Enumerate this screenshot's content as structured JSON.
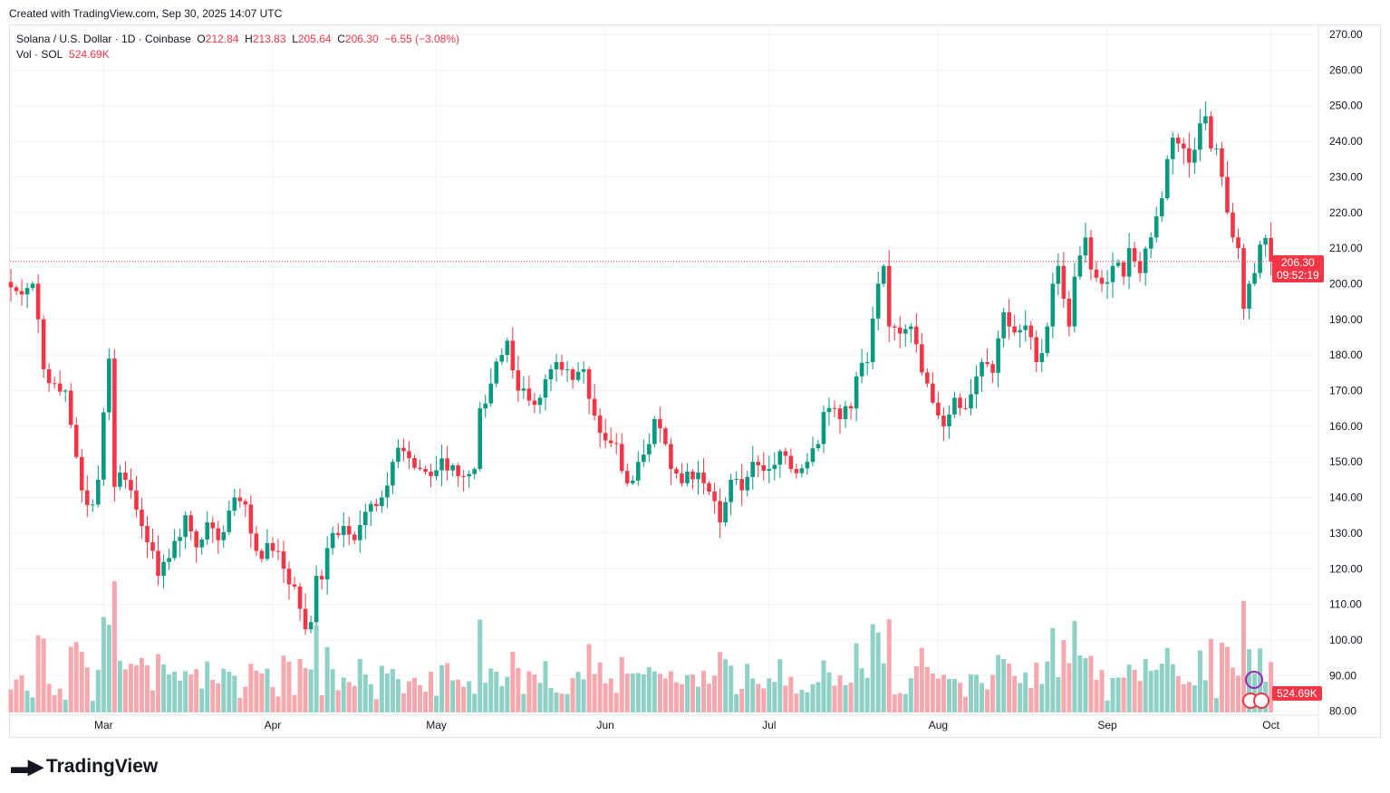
{
  "header": {
    "created": "Created with TradingView.com, Sep 30, 2025 14:07 UTC"
  },
  "legend": {
    "symbol": "Solana / U.S. Dollar · 1D · Coinbase",
    "o_label": "O",
    "o": "212.84",
    "h_label": "H",
    "h": "213.83",
    "l_label": "L",
    "l": "205.64",
    "c_label": "C",
    "c": "206.30",
    "change": "−6.55 (−3.08%)",
    "vol_label": "Vol · SOL",
    "vol": "524.69K"
  },
  "price_tag": {
    "price": "206.30",
    "countdown": "09:52:19"
  },
  "volume_tag": "524.69K",
  "logo": "TradingView",
  "chart_data": {
    "type": "candlestick",
    "title": "Solana / U.S. Dollar · 1D · Coinbase",
    "ylim": [
      80,
      270
    ],
    "yticks": [
      "270.00",
      "260.00",
      "250.00",
      "240.00",
      "230.00",
      "220.00",
      "210.00",
      "200.00",
      "190.00",
      "180.00",
      "170.00",
      "160.00",
      "150.00",
      "140.00",
      "130.00",
      "120.00",
      "110.00",
      "100.00",
      "90.00",
      "80.00"
    ],
    "xticks": [
      {
        "label": "Mar",
        "day": 17
      },
      {
        "label": "Apr",
        "day": 48
      },
      {
        "label": "May",
        "day": 78
      },
      {
        "label": "Jun",
        "day": 109
      },
      {
        "label": "Jul",
        "day": 139
      },
      {
        "label": "Aug",
        "day": 170
      },
      {
        "label": "Sep",
        "day": 201
      },
      {
        "label": "Oct",
        "day": 231
      }
    ],
    "start_date": "2025-02-12",
    "close_anchors": [
      [
        0,
        199
      ],
      [
        2,
        197
      ],
      [
        4,
        200
      ],
      [
        5,
        190
      ],
      [
        6,
        176
      ],
      [
        8,
        172
      ],
      [
        10,
        170
      ],
      [
        13,
        142
      ],
      [
        15,
        138
      ],
      [
        16,
        145
      ],
      [
        18,
        179
      ],
      [
        19,
        143
      ],
      [
        20,
        147
      ],
      [
        22,
        142
      ],
      [
        24,
        132
      ],
      [
        26,
        125
      ],
      [
        27,
        118
      ],
      [
        29,
        123
      ],
      [
        32,
        135
      ],
      [
        34,
        126
      ],
      [
        36,
        133
      ],
      [
        38,
        128
      ],
      [
        41,
        140
      ],
      [
        43,
        138
      ],
      [
        45,
        125
      ],
      [
        48,
        125
      ],
      [
        50,
        120
      ],
      [
        52,
        115
      ],
      [
        54,
        103
      ],
      [
        55,
        105
      ],
      [
        56,
        118
      ],
      [
        57,
        117
      ],
      [
        59,
        130
      ],
      [
        61,
        132
      ],
      [
        63,
        128
      ],
      [
        65,
        136
      ],
      [
        68,
        140
      ],
      [
        70,
        150
      ],
      [
        72,
        153
      ],
      [
        75,
        148
      ],
      [
        77,
        146
      ],
      [
        79,
        151
      ],
      [
        82,
        146
      ],
      [
        85,
        148
      ],
      [
        86,
        165
      ],
      [
        88,
        172
      ],
      [
        90,
        180
      ],
      [
        91,
        184
      ],
      [
        93,
        170
      ],
      [
        96,
        166
      ],
      [
        99,
        176
      ],
      [
        100,
        178
      ],
      [
        103,
        173
      ],
      [
        105,
        176
      ],
      [
        107,
        163
      ],
      [
        109,
        156
      ],
      [
        111,
        155
      ],
      [
        113,
        144
      ],
      [
        115,
        150
      ],
      [
        117,
        155
      ],
      [
        118,
        162
      ],
      [
        120,
        155
      ],
      [
        121,
        148
      ],
      [
        123,
        144
      ],
      [
        126,
        147
      ],
      [
        129,
        139
      ],
      [
        130,
        133
      ],
      [
        132,
        145
      ],
      [
        134,
        142
      ],
      [
        136,
        150
      ],
      [
        139,
        148
      ],
      [
        141,
        153
      ],
      [
        143,
        148
      ],
      [
        146,
        150
      ],
      [
        148,
        155
      ],
      [
        149,
        164
      ],
      [
        152,
        162
      ],
      [
        154,
        165
      ],
      [
        155,
        174
      ],
      [
        157,
        178
      ],
      [
        159,
        200
      ],
      [
        160,
        205
      ],
      [
        161,
        188
      ],
      [
        163,
        186
      ],
      [
        165,
        188
      ],
      [
        166,
        183
      ],
      [
        168,
        172
      ],
      [
        170,
        163
      ],
      [
        171,
        160
      ],
      [
        173,
        168
      ],
      [
        175,
        165
      ],
      [
        177,
        174
      ],
      [
        178,
        178
      ],
      [
        180,
        175
      ],
      [
        182,
        192
      ],
      [
        183,
        188
      ],
      [
        185,
        187
      ],
      [
        187,
        185
      ],
      [
        188,
        178
      ],
      [
        190,
        188
      ],
      [
        191,
        200
      ],
      [
        192,
        205
      ],
      [
        194,
        188
      ],
      [
        195,
        202
      ],
      [
        197,
        213
      ],
      [
        198,
        204
      ],
      [
        200,
        200
      ],
      [
        202,
        205
      ],
      [
        204,
        202
      ],
      [
        205,
        210
      ],
      [
        207,
        203
      ],
      [
        209,
        213
      ],
      [
        211,
        224
      ],
      [
        212,
        235
      ],
      [
        213,
        241
      ],
      [
        215,
        238
      ],
      [
        216,
        234
      ],
      [
        218,
        245
      ],
      [
        219,
        247
      ],
      [
        220,
        238
      ],
      [
        221,
        238
      ],
      [
        222,
        230
      ],
      [
        223,
        220
      ],
      [
        224,
        213
      ],
      [
        225,
        210
      ],
      [
        226,
        193
      ],
      [
        227,
        200
      ],
      [
        228,
        203
      ],
      [
        229,
        211
      ],
      [
        230,
        212.84
      ],
      [
        231,
        206.3
      ]
    ]
  }
}
